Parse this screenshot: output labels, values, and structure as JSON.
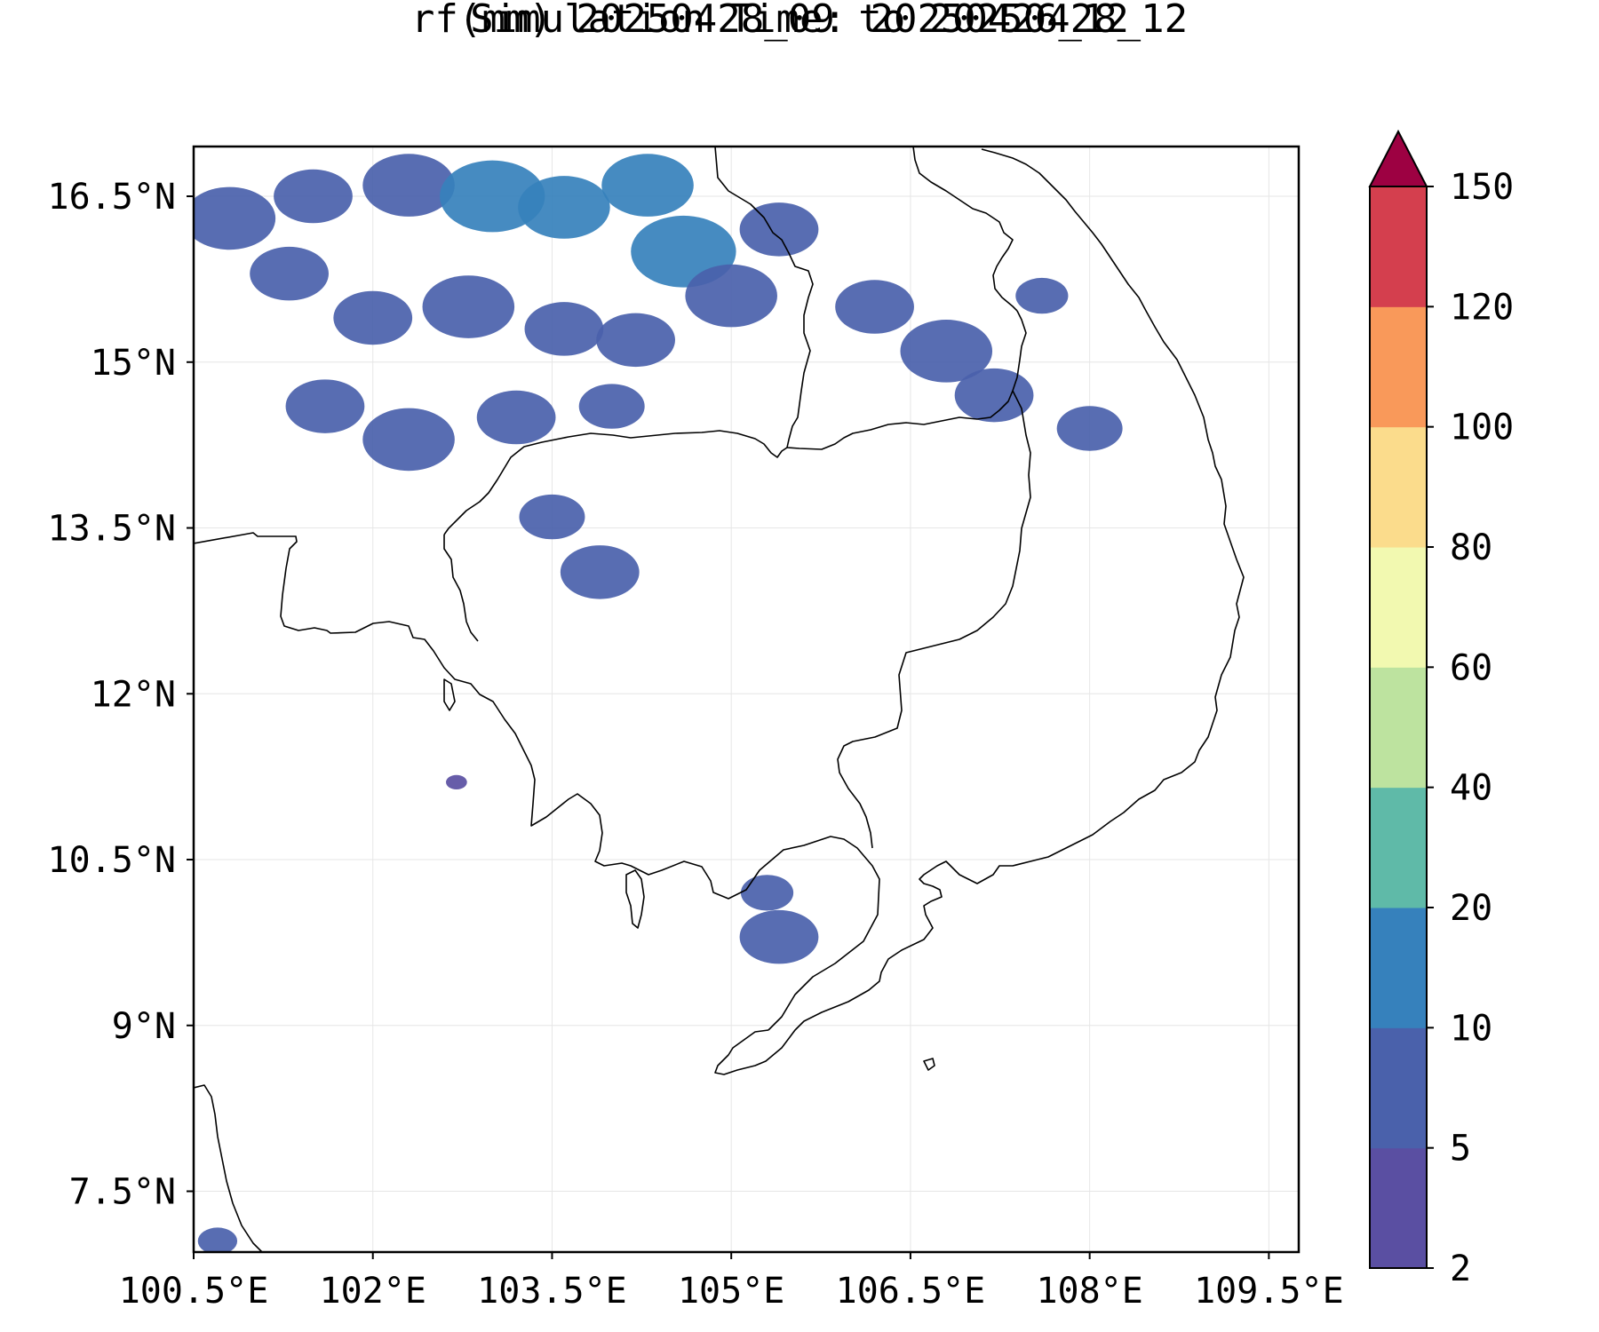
{
  "title": {
    "line1": "rf(mm) 20250428_09 to 20250428_12",
    "line2": "Simulation Time: 20250426_12"
  },
  "map": {
    "lon_range": [
      100.5,
      109.75
    ],
    "lat_range": [
      6.95,
      16.95
    ],
    "x_ticks": [
      "100.5°E",
      "102°E",
      "103.5°E",
      "105°E",
      "106.5°E",
      "108°E",
      "109.5°E"
    ],
    "x_tick_values": [
      100.5,
      102,
      103.5,
      105,
      106.5,
      108,
      109.5
    ],
    "y_ticks": [
      "7.5°N",
      "9°N",
      "10.5°N",
      "12°N",
      "13.5°N",
      "15°N",
      "16.5°N"
    ],
    "y_tick_values": [
      7.5,
      9,
      10.5,
      12,
      13.5,
      15,
      16.5
    ],
    "grid": true
  },
  "colorbar": {
    "levels": [
      "2",
      "5",
      "10",
      "20",
      "40",
      "60",
      "80",
      "100",
      "120",
      "150"
    ],
    "colors": [
      "#5a4fa2",
      "#4a61ab",
      "#3681bc",
      "#5fbaa8",
      "#bde39f",
      "#f2f9b0",
      "#fbdc8c",
      "#f9995a",
      "#d43f4e"
    ],
    "extend_color": "#9d0142",
    "extend": "max"
  },
  "rain_areas": [
    {
      "lon": 100.8,
      "lat": 16.3,
      "r": 0.35,
      "level": 1
    },
    {
      "lon": 101.5,
      "lat": 16.5,
      "r": 0.3,
      "level": 1
    },
    {
      "lon": 102.3,
      "lat": 16.6,
      "r": 0.35,
      "level": 1
    },
    {
      "lon": 103.0,
      "lat": 16.5,
      "r": 0.4,
      "level": 2
    },
    {
      "lon": 103.6,
      "lat": 16.4,
      "r": 0.35,
      "level": 2
    },
    {
      "lon": 104.3,
      "lat": 16.6,
      "r": 0.35,
      "level": 2
    },
    {
      "lon": 104.6,
      "lat": 16.0,
      "r": 0.4,
      "level": 2
    },
    {
      "lon": 105.0,
      "lat": 15.6,
      "r": 0.35,
      "level": 1
    },
    {
      "lon": 105.4,
      "lat": 16.2,
      "r": 0.3,
      "level": 1
    },
    {
      "lon": 101.3,
      "lat": 15.8,
      "r": 0.3,
      "level": 1
    },
    {
      "lon": 102.0,
      "lat": 15.4,
      "r": 0.3,
      "level": 1
    },
    {
      "lon": 102.8,
      "lat": 15.5,
      "r": 0.35,
      "level": 1
    },
    {
      "lon": 103.6,
      "lat": 15.3,
      "r": 0.3,
      "level": 1
    },
    {
      "lon": 104.2,
      "lat": 15.2,
      "r": 0.3,
      "level": 1
    },
    {
      "lon": 101.6,
      "lat": 14.6,
      "r": 0.3,
      "level": 1
    },
    {
      "lon": 102.3,
      "lat": 14.3,
      "r": 0.35,
      "level": 1
    },
    {
      "lon": 103.2,
      "lat": 14.5,
      "r": 0.3,
      "level": 1
    },
    {
      "lon": 104.0,
      "lat": 14.6,
      "r": 0.25,
      "level": 1
    },
    {
      "lon": 103.5,
      "lat": 13.6,
      "r": 0.25,
      "level": 1
    },
    {
      "lon": 103.9,
      "lat": 13.1,
      "r": 0.3,
      "level": 1
    },
    {
      "lon": 106.2,
      "lat": 15.5,
      "r": 0.3,
      "level": 1
    },
    {
      "lon": 106.8,
      "lat": 15.1,
      "r": 0.35,
      "level": 1
    },
    {
      "lon": 107.2,
      "lat": 14.7,
      "r": 0.3,
      "level": 1
    },
    {
      "lon": 107.6,
      "lat": 15.6,
      "r": 0.2,
      "level": 1
    },
    {
      "lon": 108.0,
      "lat": 14.4,
      "r": 0.25,
      "level": 1
    },
    {
      "lon": 105.4,
      "lat": 9.8,
      "r": 0.3,
      "level": 1
    },
    {
      "lon": 105.3,
      "lat": 10.2,
      "r": 0.2,
      "level": 1
    },
    {
      "lon": 102.7,
      "lat": 11.2,
      "r": 0.08,
      "level": 0
    },
    {
      "lon": 100.7,
      "lat": 7.05,
      "r": 0.15,
      "level": 1
    }
  ]
}
